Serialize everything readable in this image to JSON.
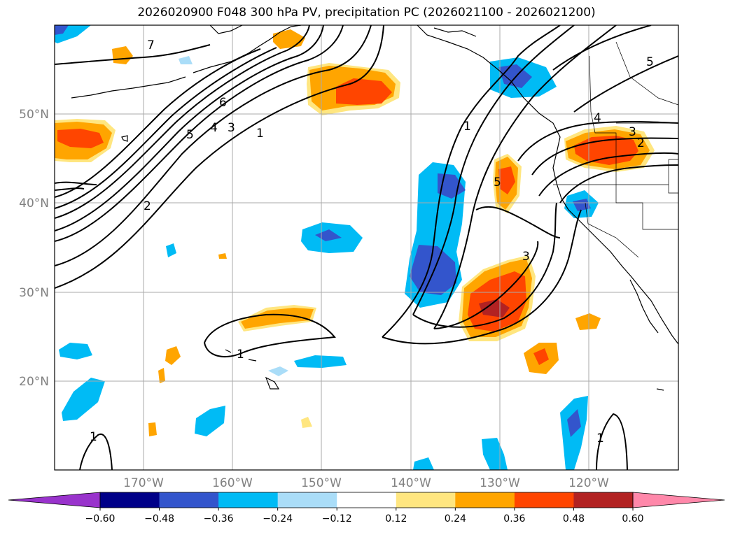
{
  "title": "2026020900 F048 300 hPa PV, precipitation PC (2026021100 - 2026021200)",
  "lat_labels": [
    "50°N",
    "40°N",
    "30°N",
    "20°N"
  ],
  "lon_labels": [
    "170°W",
    "160°W",
    "150°W",
    "140°W",
    "130°W",
    "120°W"
  ],
  "colorbar": {
    "ticks": [
      "−0.60",
      "−0.48",
      "−0.36",
      "−0.24",
      "−0.12",
      "0.12",
      "0.24",
      "0.36",
      "0.48",
      "0.60"
    ],
    "colors": [
      "#9933cc",
      "#000088",
      "#3355cc",
      "#00bbf5",
      "#aaddf8",
      "#ffffff",
      "#ffe680",
      "#ffa500",
      "#ff4500",
      "#b22222",
      "#ff88aa"
    ]
  },
  "contour_labels": [
    "7",
    "6",
    "5",
    "4",
    "3",
    "1",
    "2",
    "1",
    "5",
    "3",
    "4",
    "3",
    "2",
    "5",
    "1",
    "1",
    "1"
  ]
}
